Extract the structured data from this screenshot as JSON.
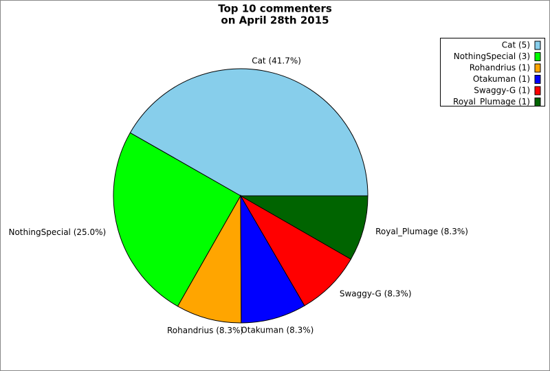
{
  "chart_data": {
    "type": "pie",
    "title": [
      "Top 10 commenters",
      "on April 28th 2015"
    ],
    "categories": [
      "Cat (5)",
      "NothingSpecial (3)",
      "Rohandrius (1)",
      "Otakuman (1)",
      "Swaggy-G (1)",
      "Royal_Plumage (1)"
    ],
    "values": [
      41.7,
      25.0,
      8.3,
      8.3,
      8.3,
      8.3
    ],
    "value_labels": [
      "Cat (41.7%)",
      "NothingSpecial (25.0%)",
      "Rohandrius (8.3%)",
      "Otakuman (8.3%)",
      "Swaggy-G (8.3%)",
      "Royal_Plumage (8.3%)"
    ],
    "colors": [
      "#87ceeb",
      "#00ff00",
      "#ffa500",
      "#0000ff",
      "#ff0000",
      "#006400"
    ],
    "legend": "upper right"
  }
}
